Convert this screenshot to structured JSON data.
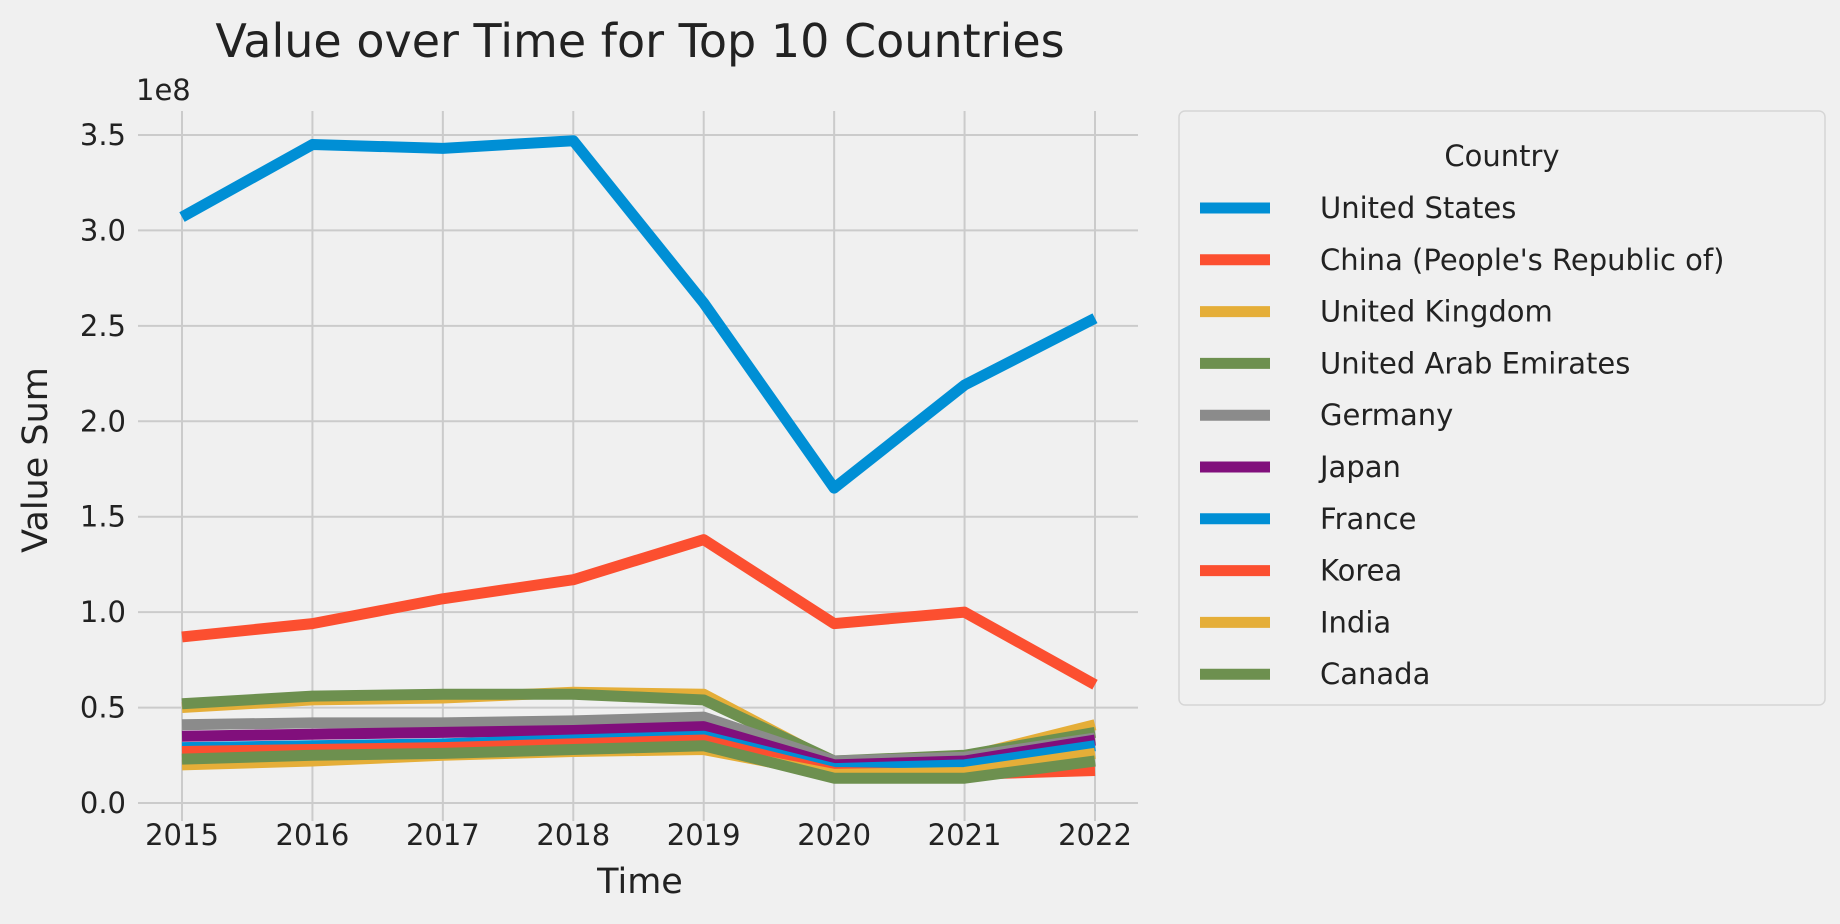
{
  "chart_data": {
    "type": "line",
    "title": "Value over Time for Top 10 Countries",
    "xlabel": "Time",
    "ylabel": "Value Sum",
    "y_offset_label": "1e8",
    "x": [
      2015,
      2016,
      2017,
      2018,
      2019,
      2020,
      2021,
      2022
    ],
    "x_tick_labels": [
      "2015",
      "2016",
      "2017",
      "2018",
      "2019",
      "2020",
      "2021",
      "2022"
    ],
    "y_ticks": [
      0,
      0.5,
      1.0,
      1.5,
      2.0,
      2.5,
      3.0,
      3.5
    ],
    "y_tick_labels": [
      "0.0",
      "0.5",
      "1.0",
      "1.5",
      "2.0",
      "2.5",
      "3.0",
      "3.5"
    ],
    "y_unit_multiplier": 100000000,
    "ylim": [
      0,
      3.62
    ],
    "grid": true,
    "legend": {
      "title": "Country",
      "placement": "outside-right"
    },
    "series": [
      {
        "name": "United States",
        "color": "#008fd5",
        "values": [
          3.07,
          3.45,
          3.43,
          3.47,
          2.62,
          1.65,
          2.19,
          2.54
        ]
      },
      {
        "name": "China (People's Republic of)",
        "color": "#fc4f30",
        "values": [
          0.87,
          0.94,
          1.07,
          1.17,
          1.38,
          0.94,
          1.0,
          0.62
        ]
      },
      {
        "name": "United Kingdom",
        "color": "#e5ae38",
        "values": [
          0.5,
          0.54,
          0.55,
          0.58,
          0.57,
          0.21,
          0.24,
          0.41
        ]
      },
      {
        "name": "United Arab Emirates",
        "color": "#6d904f",
        "values": [
          0.52,
          0.56,
          0.57,
          0.57,
          0.54,
          0.22,
          0.25,
          0.37
        ]
      },
      {
        "name": "Germany",
        "color": "#8b8b8b",
        "values": [
          0.41,
          0.42,
          0.42,
          0.43,
          0.45,
          0.22,
          0.24,
          0.34
        ]
      },
      {
        "name": "Japan",
        "color": "#810f7c",
        "values": [
          0.35,
          0.36,
          0.37,
          0.38,
          0.4,
          0.2,
          0.22,
          0.33
        ]
      },
      {
        "name": "France",
        "color": "#008fd5",
        "values": [
          0.29,
          0.3,
          0.31,
          0.33,
          0.35,
          0.18,
          0.2,
          0.3
        ]
      },
      {
        "name": "Korea",
        "color": "#fc4f30",
        "values": [
          0.27,
          0.28,
          0.29,
          0.31,
          0.33,
          0.16,
          0.15,
          0.17
        ]
      },
      {
        "name": "India",
        "color": "#e5ae38",
        "values": [
          0.2,
          0.22,
          0.25,
          0.27,
          0.28,
          0.15,
          0.16,
          0.26
        ]
      },
      {
        "name": "Canada",
        "color": "#6d904f",
        "values": [
          0.23,
          0.25,
          0.26,
          0.28,
          0.3,
          0.13,
          0.13,
          0.22
        ]
      }
    ]
  }
}
